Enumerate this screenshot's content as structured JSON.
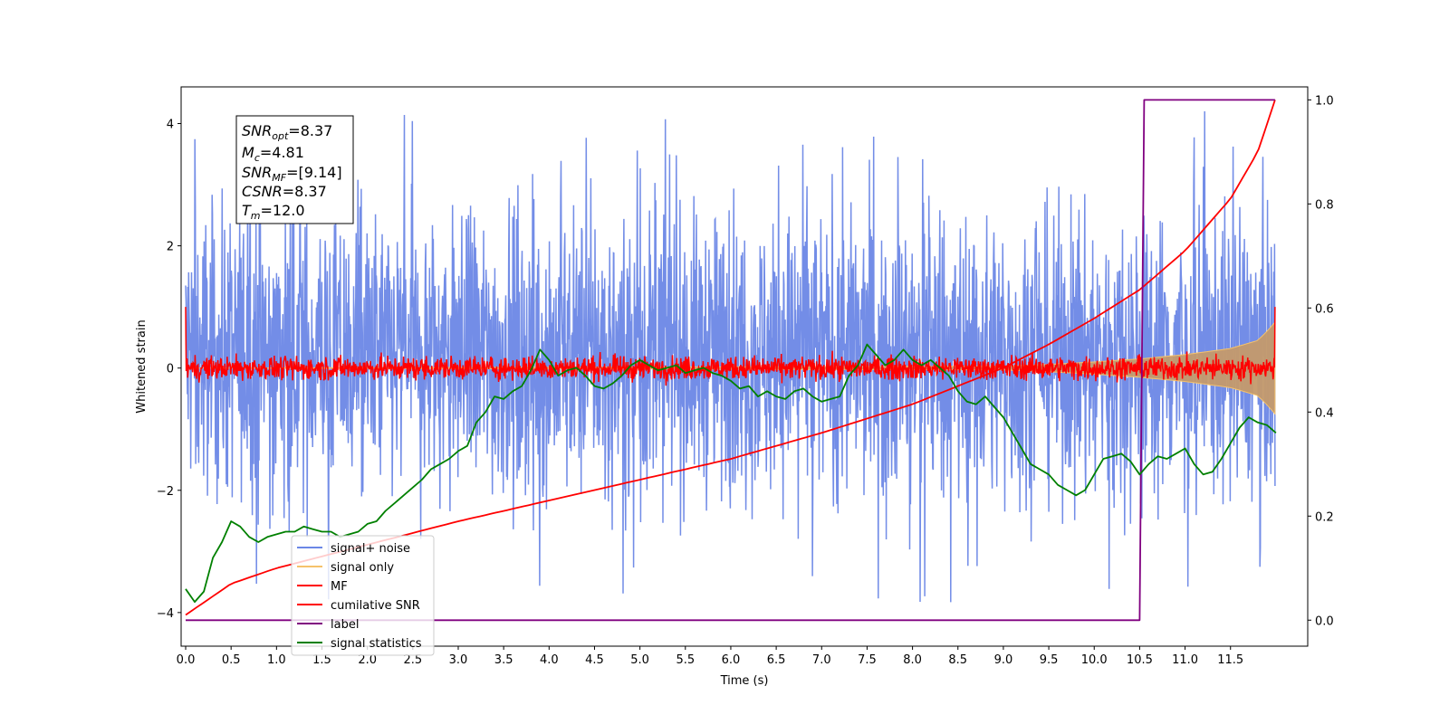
{
  "chart_data": {
    "type": "line",
    "xlabel": "Time (s)",
    "ylabel": "Whitened strain",
    "xlim": [
      -0.05,
      12.35
    ],
    "ylim": [
      -4.55,
      4.6
    ],
    "y2lim": [
      -0.05,
      1.025
    ],
    "x_ticks": [
      0.0,
      0.5,
      1.0,
      1.5,
      2.0,
      2.5,
      3.0,
      3.5,
      4.0,
      4.5,
      5.0,
      5.5,
      6.0,
      6.5,
      7.0,
      7.5,
      8.0,
      8.5,
      9.0,
      9.5,
      10.0,
      10.5,
      11.0,
      11.5
    ],
    "x_tick_labels": [
      "0.0",
      "0.5",
      "1.0",
      "1.5",
      "2.0",
      "2.5",
      "3.0",
      "3.5",
      "4.0",
      "4.5",
      "5.0",
      "5.5",
      "6.0",
      "6.5",
      "7.0",
      "7.5",
      "8.0",
      "8.5",
      "9.0",
      "9.5",
      "10.0",
      "10.5",
      "11.0",
      "11.5"
    ],
    "y_ticks": [
      -4,
      -2,
      0,
      2,
      4
    ],
    "y_tick_labels": [
      "−4",
      "−2",
      "0",
      "2",
      "4"
    ],
    "y2_ticks": [
      0.0,
      0.2,
      0.4,
      0.6,
      0.8,
      1.0
    ],
    "y2_tick_labels": [
      "0.0",
      "0.2",
      "0.4",
      "0.6",
      "0.8",
      "1.0"
    ],
    "legend_position": "lower-left",
    "annotation": {
      "snr_opt": "8.37",
      "mc": "4.81",
      "snr_mf": "[9.14]",
      "csnr": "8.37",
      "tm": "12.0"
    },
    "series": [
      {
        "name": "signal+ noise",
        "color": "#6b87e6",
        "axis": "left",
        "kind": "noise",
        "x_range": [
          0.0,
          11.99
        ],
        "mean": 0.2,
        "amplitude": 1.15,
        "peaks_max": 4.2,
        "peaks_min": -3.95
      },
      {
        "name": "signal only",
        "color": "#f5c26b",
        "axis": "left",
        "kind": "chirp-envelope",
        "x_range": [
          0.0,
          11.99
        ],
        "env_x": [
          0.0,
          9.0,
          9.5,
          10.0,
          10.5,
          11.0,
          11.5,
          11.8,
          11.9,
          11.99
        ],
        "env_y": [
          0.0,
          0.03,
          0.06,
          0.1,
          0.15,
          0.22,
          0.32,
          0.45,
          0.6,
          0.75
        ]
      },
      {
        "name": "MF",
        "color": "#ff0000",
        "axis": "left",
        "kind": "noise",
        "x_range": [
          0.0,
          11.99
        ],
        "mean": 0.0,
        "amplitude": 0.12,
        "start_value": 1.0,
        "end_value": 1.0
      },
      {
        "name": "cumilative SNR",
        "color": "#ff0000",
        "axis": "right",
        "x": [
          0.0,
          0.5,
          1.0,
          2.0,
          3.0,
          4.0,
          5.0,
          6.0,
          7.0,
          8.0,
          9.0,
          9.5,
          10.0,
          10.5,
          11.0,
          11.5,
          11.8,
          11.99
        ],
        "y": [
          0.01,
          0.07,
          0.1,
          0.145,
          0.19,
          0.23,
          0.27,
          0.31,
          0.36,
          0.415,
          0.485,
          0.53,
          0.58,
          0.635,
          0.71,
          0.81,
          0.9,
          1.0
        ]
      },
      {
        "name": "label",
        "color": "#800080",
        "axis": "right",
        "x": [
          0.0,
          10.4,
          10.5,
          10.55,
          11.99
        ],
        "y": [
          0.0,
          0.0,
          0.0,
          1.0,
          1.0
        ]
      },
      {
        "name": "signal statistics",
        "color": "#008000",
        "axis": "right",
        "x": [
          0.0,
          0.1,
          0.2,
          0.3,
          0.4,
          0.5,
          0.6,
          0.7,
          0.8,
          0.9,
          1.0,
          1.1,
          1.2,
          1.3,
          1.4,
          1.5,
          1.6,
          1.7,
          1.8,
          1.9,
          2.0,
          2.1,
          2.2,
          2.3,
          2.4,
          2.5,
          2.6,
          2.7,
          2.8,
          2.9,
          3.0,
          3.1,
          3.2,
          3.3,
          3.4,
          3.5,
          3.6,
          3.7,
          3.8,
          3.9,
          4.0,
          4.1,
          4.2,
          4.3,
          4.4,
          4.5,
          4.6,
          4.7,
          4.8,
          4.9,
          5.0,
          5.1,
          5.2,
          5.3,
          5.4,
          5.5,
          5.6,
          5.7,
          5.8,
          5.9,
          6.0,
          6.1,
          6.2,
          6.3,
          6.4,
          6.5,
          6.6,
          6.7,
          6.8,
          6.9,
          7.0,
          7.1,
          7.2,
          7.3,
          7.4,
          7.5,
          7.6,
          7.7,
          7.8,
          7.9,
          8.0,
          8.1,
          8.2,
          8.3,
          8.4,
          8.5,
          8.6,
          8.7,
          8.8,
          8.9,
          9.0,
          9.1,
          9.2,
          9.3,
          9.4,
          9.5,
          9.6,
          9.7,
          9.8,
          9.9,
          10.0,
          10.1,
          10.2,
          10.3,
          10.4,
          10.5,
          10.6,
          10.7,
          10.8,
          10.9,
          11.0,
          11.1,
          11.2,
          11.3,
          11.4,
          11.5,
          11.6,
          11.7,
          11.8,
          11.9,
          12.0
        ],
        "y": [
          0.06,
          0.035,
          0.055,
          0.12,
          0.15,
          0.19,
          0.18,
          0.16,
          0.15,
          0.16,
          0.165,
          0.17,
          0.17,
          0.18,
          0.175,
          0.17,
          0.17,
          0.16,
          0.165,
          0.17,
          0.185,
          0.19,
          0.21,
          0.225,
          0.24,
          0.255,
          0.27,
          0.29,
          0.3,
          0.31,
          0.325,
          0.335,
          0.38,
          0.4,
          0.43,
          0.425,
          0.44,
          0.45,
          0.48,
          0.52,
          0.5,
          0.47,
          0.48,
          0.485,
          0.47,
          0.45,
          0.445,
          0.455,
          0.47,
          0.49,
          0.5,
          0.49,
          0.48,
          0.485,
          0.49,
          0.475,
          0.48,
          0.485,
          0.475,
          0.47,
          0.46,
          0.445,
          0.45,
          0.43,
          0.44,
          0.43,
          0.425,
          0.44,
          0.445,
          0.43,
          0.42,
          0.425,
          0.43,
          0.47,
          0.49,
          0.53,
          0.51,
          0.49,
          0.5,
          0.52,
          0.5,
          0.49,
          0.5,
          0.485,
          0.47,
          0.44,
          0.42,
          0.415,
          0.43,
          0.41,
          0.39,
          0.36,
          0.33,
          0.3,
          0.29,
          0.28,
          0.26,
          0.25,
          0.24,
          0.25,
          0.28,
          0.31,
          0.315,
          0.32,
          0.305,
          0.28,
          0.3,
          0.315,
          0.31,
          0.32,
          0.33,
          0.3,
          0.28,
          0.285,
          0.31,
          0.34,
          0.37,
          0.39,
          0.38,
          0.375,
          0.36
        ]
      }
    ]
  }
}
